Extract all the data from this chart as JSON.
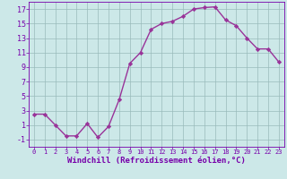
{
  "x": [
    0,
    1,
    2,
    3,
    4,
    5,
    6,
    7,
    8,
    9,
    10,
    11,
    12,
    13,
    14,
    15,
    16,
    17,
    18,
    19,
    20,
    21,
    22,
    23
  ],
  "y": [
    2.5,
    2.5,
    1.0,
    -0.5,
    -0.5,
    1.2,
    -0.7,
    0.8,
    4.5,
    9.5,
    11.0,
    14.2,
    15.0,
    15.3,
    16.0,
    17.0,
    17.2,
    17.3,
    15.5,
    14.7,
    13.0,
    11.5,
    11.5,
    9.7
  ],
  "line_color": "#993399",
  "marker": "D",
  "marker_size": 2.2,
  "bg_color": "#cce8e8",
  "grid_color": "#99bbbb",
  "xlabel": "Windchill (Refroidissement éolien,°C)",
  "xlim": [
    -0.5,
    23.5
  ],
  "ylim": [
    -2.0,
    18.0
  ],
  "yticks": [
    -1,
    1,
    3,
    5,
    7,
    9,
    11,
    13,
    15,
    17
  ],
  "xticks": [
    0,
    1,
    2,
    3,
    4,
    5,
    6,
    7,
    8,
    9,
    10,
    11,
    12,
    13,
    14,
    15,
    16,
    17,
    18,
    19,
    20,
    21,
    22,
    23
  ],
  "tick_color": "#7700aa",
  "linewidth": 1.0,
  "xlabel_fontsize": 6.5,
  "ytick_fontsize": 6.0,
  "xtick_fontsize": 5.0
}
